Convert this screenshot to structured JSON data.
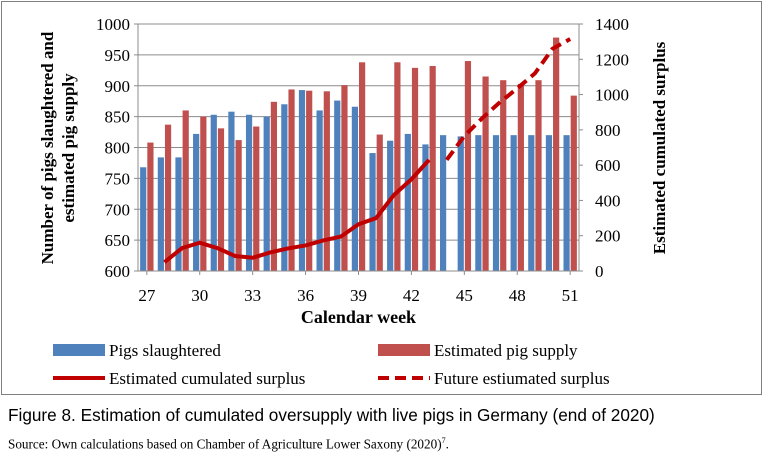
{
  "figure": {
    "caption": "Figure 8. Estimation of cumulated oversupply with live pigs in Germany (end of 2020)",
    "source_text": "Source: Own calculations based on Chamber of Agriculture Lower Saxony (2020)",
    "source_superscript": "7",
    "source_end": "."
  },
  "chart_data": {
    "type": "bar",
    "title": "",
    "xlabel": "Calendar week",
    "ylabel": "Number of pigs slaughtered and estimated pig supply",
    "ylabel_lines": [
      "Number of pigs slaughtered and",
      "estimated pig supply"
    ],
    "y2label": "Estimated cumulated surplus",
    "x": [
      27,
      28,
      29,
      30,
      31,
      32,
      33,
      34,
      35,
      36,
      37,
      38,
      39,
      40,
      41,
      42,
      43,
      44,
      45,
      46,
      47,
      48,
      49,
      50,
      51
    ],
    "x_ticks": [
      "27",
      "30",
      "33",
      "36",
      "39",
      "42",
      "45",
      "48",
      "51"
    ],
    "ylim": [
      600,
      1000
    ],
    "y_ticks": [
      "600",
      "650",
      "700",
      "750",
      "800",
      "850",
      "900",
      "950",
      "1000"
    ],
    "y2lim": [
      0,
      1400
    ],
    "y2_ticks": [
      "0",
      "200",
      "400",
      "600",
      "800",
      "1000",
      "1200",
      "1400"
    ],
    "grid": "horizontal",
    "legend_position": "bottom",
    "bar_series": [
      {
        "name": "Pigs slaughtered",
        "color": "#4f81bd",
        "values": [
          768,
          784,
          784,
          822,
          853,
          858,
          853,
          850,
          870,
          893,
          860,
          876,
          866,
          791,
          811,
          822,
          805,
          820,
          818,
          820,
          820,
          820,
          820,
          820,
          820
        ]
      },
      {
        "name": "Estimated pig supply",
        "color": "#c0504d",
        "values": [
          808,
          837,
          860,
          850,
          831,
          812,
          834,
          874,
          894,
          892,
          891,
          901,
          938,
          821,
          938,
          929,
          932,
          0,
          940,
          915,
          909,
          903,
          909,
          978,
          884
        ]
      }
    ],
    "line_series": [
      {
        "name": "Estimated cumulated surplus",
        "color": "#c00000",
        "style": "solid",
        "x": [
          28,
          29,
          30,
          31,
          32,
          33,
          34,
          35,
          36,
          37,
          38,
          39,
          40,
          41,
          42,
          43
        ],
        "values": [
          50,
          130,
          160,
          130,
          85,
          75,
          105,
          128,
          145,
          173,
          195,
          265,
          300,
          430,
          520,
          630
        ]
      },
      {
        "name": "Future estiumated surplus",
        "color": "#c00000",
        "style": "dashed",
        "x": [
          44,
          45,
          46,
          47,
          48,
          49,
          50,
          51
        ],
        "values": [
          630,
          765,
          865,
          955,
          1035,
          1120,
          1260,
          1315
        ]
      }
    ]
  }
}
